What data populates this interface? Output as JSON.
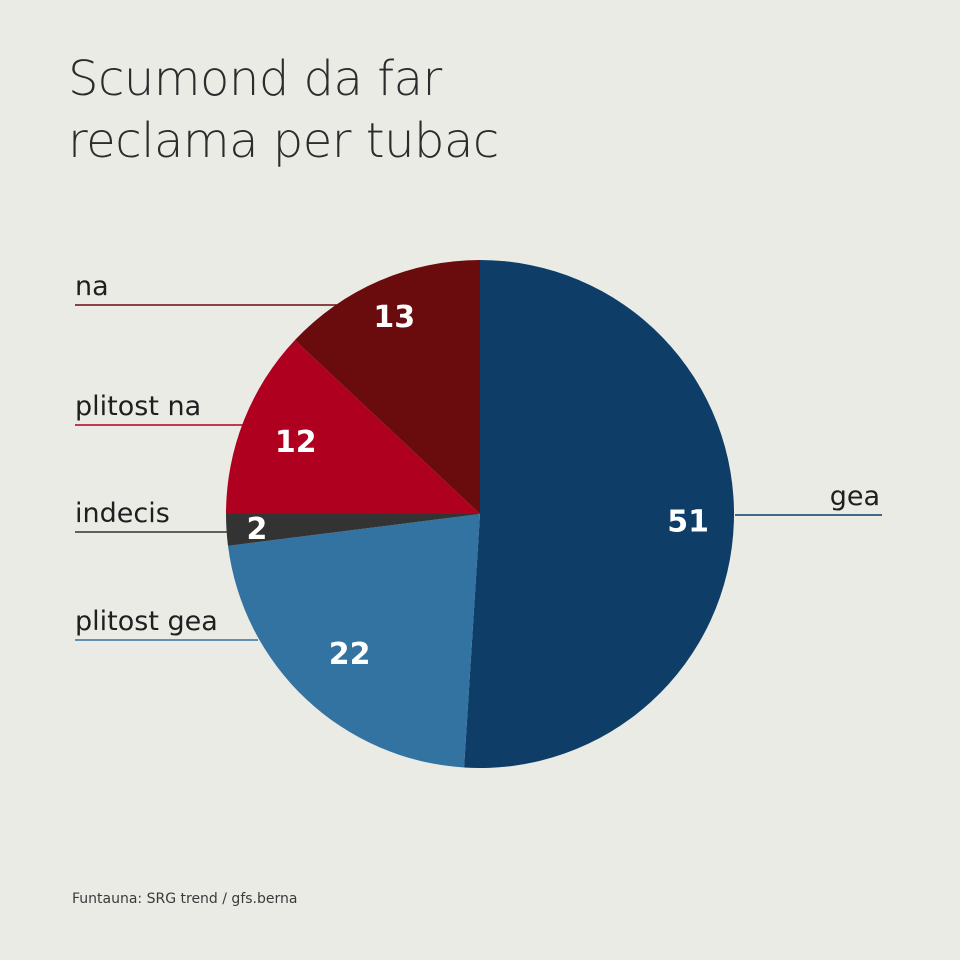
{
  "title": {
    "line1": "Scumond da far",
    "line2": "reclama per tubac"
  },
  "source": "Funtauna: SRG trend / gfs.berna",
  "chart_data": {
    "type": "pie",
    "title": "Scumond da far reclama per tubac",
    "start_angle_deg": 0,
    "direction": "clockwise",
    "slices": [
      {
        "label": "gea",
        "value": 51,
        "color": "#0e3d68"
      },
      {
        "label": "plitost gea",
        "value": 22,
        "color": "#3373a1"
      },
      {
        "label": "indecis",
        "value": 2,
        "color": "#333333"
      },
      {
        "label": "plitost na",
        "value": 12,
        "color": "#b0001f"
      },
      {
        "label": "na",
        "value": 13,
        "color": "#6a0b0d"
      }
    ],
    "label_text_color": "#ffffff"
  }
}
